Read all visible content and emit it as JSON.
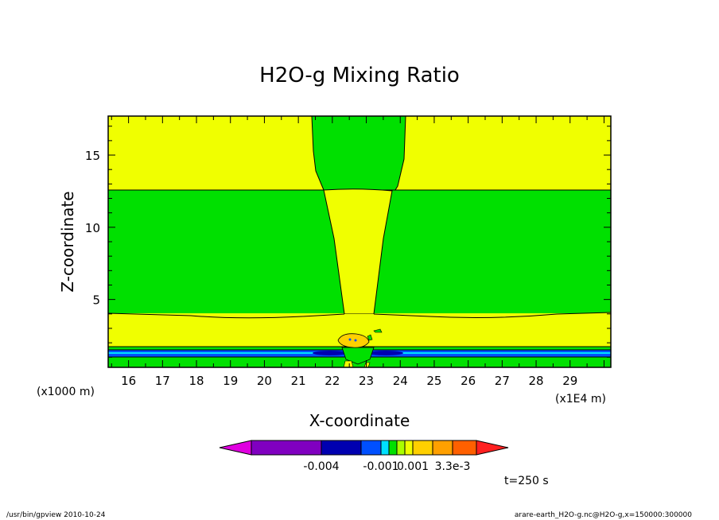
{
  "chart_data": {
    "type": "contour",
    "title": "H2O-g Mixing Ratio",
    "xlabel": "X-coordinate",
    "ylabel": "Z-coordinate",
    "x_unit": "(x1E4 m)",
    "y_unit": "(x1000 m)",
    "xlim": [
      15.4,
      30.2
    ],
    "ylim": [
      0.3,
      17.7
    ],
    "x_ticks": [
      "16",
      "17",
      "18",
      "19",
      "20",
      "21",
      "22",
      "23",
      "24",
      "25",
      "26",
      "27",
      "28",
      "29"
    ],
    "y_ticks": [
      "5",
      "10",
      "15"
    ],
    "regions": [
      {
        "level": "0.001",
        "z_range": [
          12.6,
          17.7
        ],
        "x_excluded": [
          21.0,
          23.8
        ],
        "color": "#f0ff00"
      },
      {
        "level": "0",
        "z_range": [
          4.0,
          12.6
        ],
        "color": "#00e000"
      },
      {
        "level": "0.001",
        "z_range": [
          1.5,
          4.0
        ],
        "color": "#f0ff00"
      },
      {
        "level": "-0.001",
        "z_range": [
          0.3,
          1.5
        ],
        "color": "#0050ff"
      }
    ],
    "colorbar": {
      "colors": [
        "#e000e0",
        "#8000c0",
        "#0000b0",
        "#0050ff",
        "#00e0ff",
        "#00e000",
        "#aaff00",
        "#f0ff00",
        "#ffd000",
        "#ffa000",
        "#ff6000",
        "#ff2020"
      ],
      "tick_labels": [
        "-0.004",
        "-0.001",
        "0.001",
        "3.3e-3"
      ]
    },
    "time_label": "t=250 s"
  },
  "footer": {
    "left": "/usr/bin/gpview   2010-10-24",
    "right": "arare-earth_H2O-g.nc@H2O-g,x=150000:300000"
  }
}
